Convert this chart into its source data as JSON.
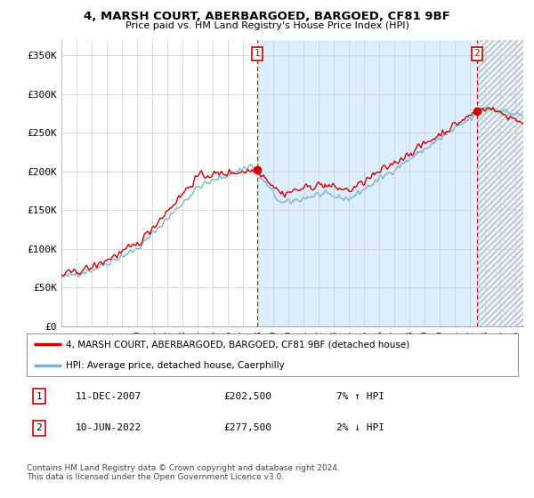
{
  "title": "4, MARSH COURT, ABERBARGOED, BARGOED, CF81 9BF",
  "subtitle": "Price paid vs. HM Land Registry's House Price Index (HPI)",
  "ylabel_ticks": [
    "£0",
    "£50K",
    "£100K",
    "£150K",
    "£200K",
    "£250K",
    "£300K",
    "£350K"
  ],
  "ytick_values": [
    0,
    50000,
    100000,
    150000,
    200000,
    250000,
    300000,
    350000
  ],
  "ylim": [
    0,
    370000
  ],
  "legend_line1": "4, MARSH COURT, ABERBARGOED, BARGOED, CF81 9BF (detached house)",
  "legend_line2": "HPI: Average price, detached house, Caerphilly",
  "annotation1_date": "11-DEC-2007",
  "annotation1_price": "£202,500",
  "annotation1_hpi": "7% ↑ HPI",
  "annotation2_date": "10-JUN-2022",
  "annotation2_price": "£277,500",
  "annotation2_hpi": "2% ↓ HPI",
  "footer": "Contains HM Land Registry data © Crown copyright and database right 2024.\nThis data is licensed under the Open Government Licence v3.0.",
  "sale1_x": 2007.94,
  "sale1_y": 202500,
  "sale2_x": 2022.44,
  "sale2_y": 277500,
  "line_color_property": "#cc0000",
  "line_color_hpi": "#7ab0d4",
  "dot_color": "#cc0000",
  "grid_color": "#cccccc",
  "fill_color": "#ddeeff",
  "hatch_color": "#ccddee",
  "background_color": "#ffffff",
  "xmin": 1995.0,
  "xmax": 2025.5
}
